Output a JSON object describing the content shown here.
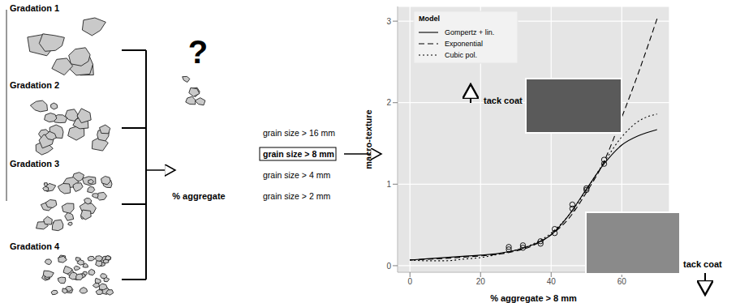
{
  "chart_data": {
    "type": "line",
    "xlabel": "% aggregate > 8 mm",
    "ylabel": "macro-texture",
    "xlim": [
      -3.5,
      73.5
    ],
    "xticks": [
      0,
      20,
      40,
      60
    ],
    "ylim": [
      -0.08,
      3.18
    ],
    "yticks": [
      0,
      1,
      2,
      3
    ],
    "grid": true,
    "legend": "top-left",
    "legend_title": "Model",
    "x": [
      0,
      5,
      10,
      15,
      20,
      25,
      30,
      35,
      40,
      45,
      50,
      55,
      60,
      65,
      70
    ],
    "series": [
      {
        "name": "Gompertz + lin.",
        "color": "#000000",
        "line_style": "solid",
        "values": [
          0.07,
          0.085,
          0.1,
          0.115,
          0.13,
          0.15,
          0.19,
          0.26,
          0.38,
          0.62,
          0.94,
          1.25,
          1.48,
          1.6,
          1.67
        ]
      },
      {
        "name": "Exponential",
        "color": "#000000",
        "line_style": "dashed",
        "values": [
          0.07,
          0.08,
          0.09,
          0.105,
          0.12,
          0.14,
          0.18,
          0.25,
          0.38,
          0.58,
          0.9,
          1.28,
          1.82,
          2.4,
          3.03
        ]
      },
      {
        "name": "Cubic pol.",
        "color": "#000000",
        "line_style": "dotted",
        "values": [
          0.07,
          0.06,
          0.06,
          0.08,
          0.1,
          0.14,
          0.19,
          0.27,
          0.4,
          0.62,
          0.93,
          1.27,
          1.58,
          1.78,
          1.86
        ]
      },
      {
        "type": "scatter",
        "marker": "circle",
        "color": "#000000",
        "x": [
          28,
          28,
          32,
          32,
          37,
          37,
          41,
          41,
          46,
          46,
          50,
          50,
          55,
          55
        ],
        "values": [
          0.23,
          0.2,
          0.22,
          0.25,
          0.27,
          0.3,
          0.4,
          0.45,
          0.7,
          0.75,
          0.93,
          0.95,
          1.25,
          1.3
        ]
      }
    ],
    "annotations": [
      {
        "text": "tack coat",
        "direction": "up"
      },
      {
        "text": "tack coat",
        "direction": "down"
      }
    ]
  },
  "diagram": {
    "gradations": [
      "Gradation 1",
      "Gradation 2",
      "Gradation 3",
      "Gradation 4"
    ],
    "question": "?",
    "aggregate_label": "% aggregate",
    "grain_sizes": [
      "grain size > 16 mm",
      "grain size > 8 mm",
      "grain size > 4 mm",
      "grain size > 2 mm"
    ],
    "boxed": "grain size > 8 mm"
  }
}
